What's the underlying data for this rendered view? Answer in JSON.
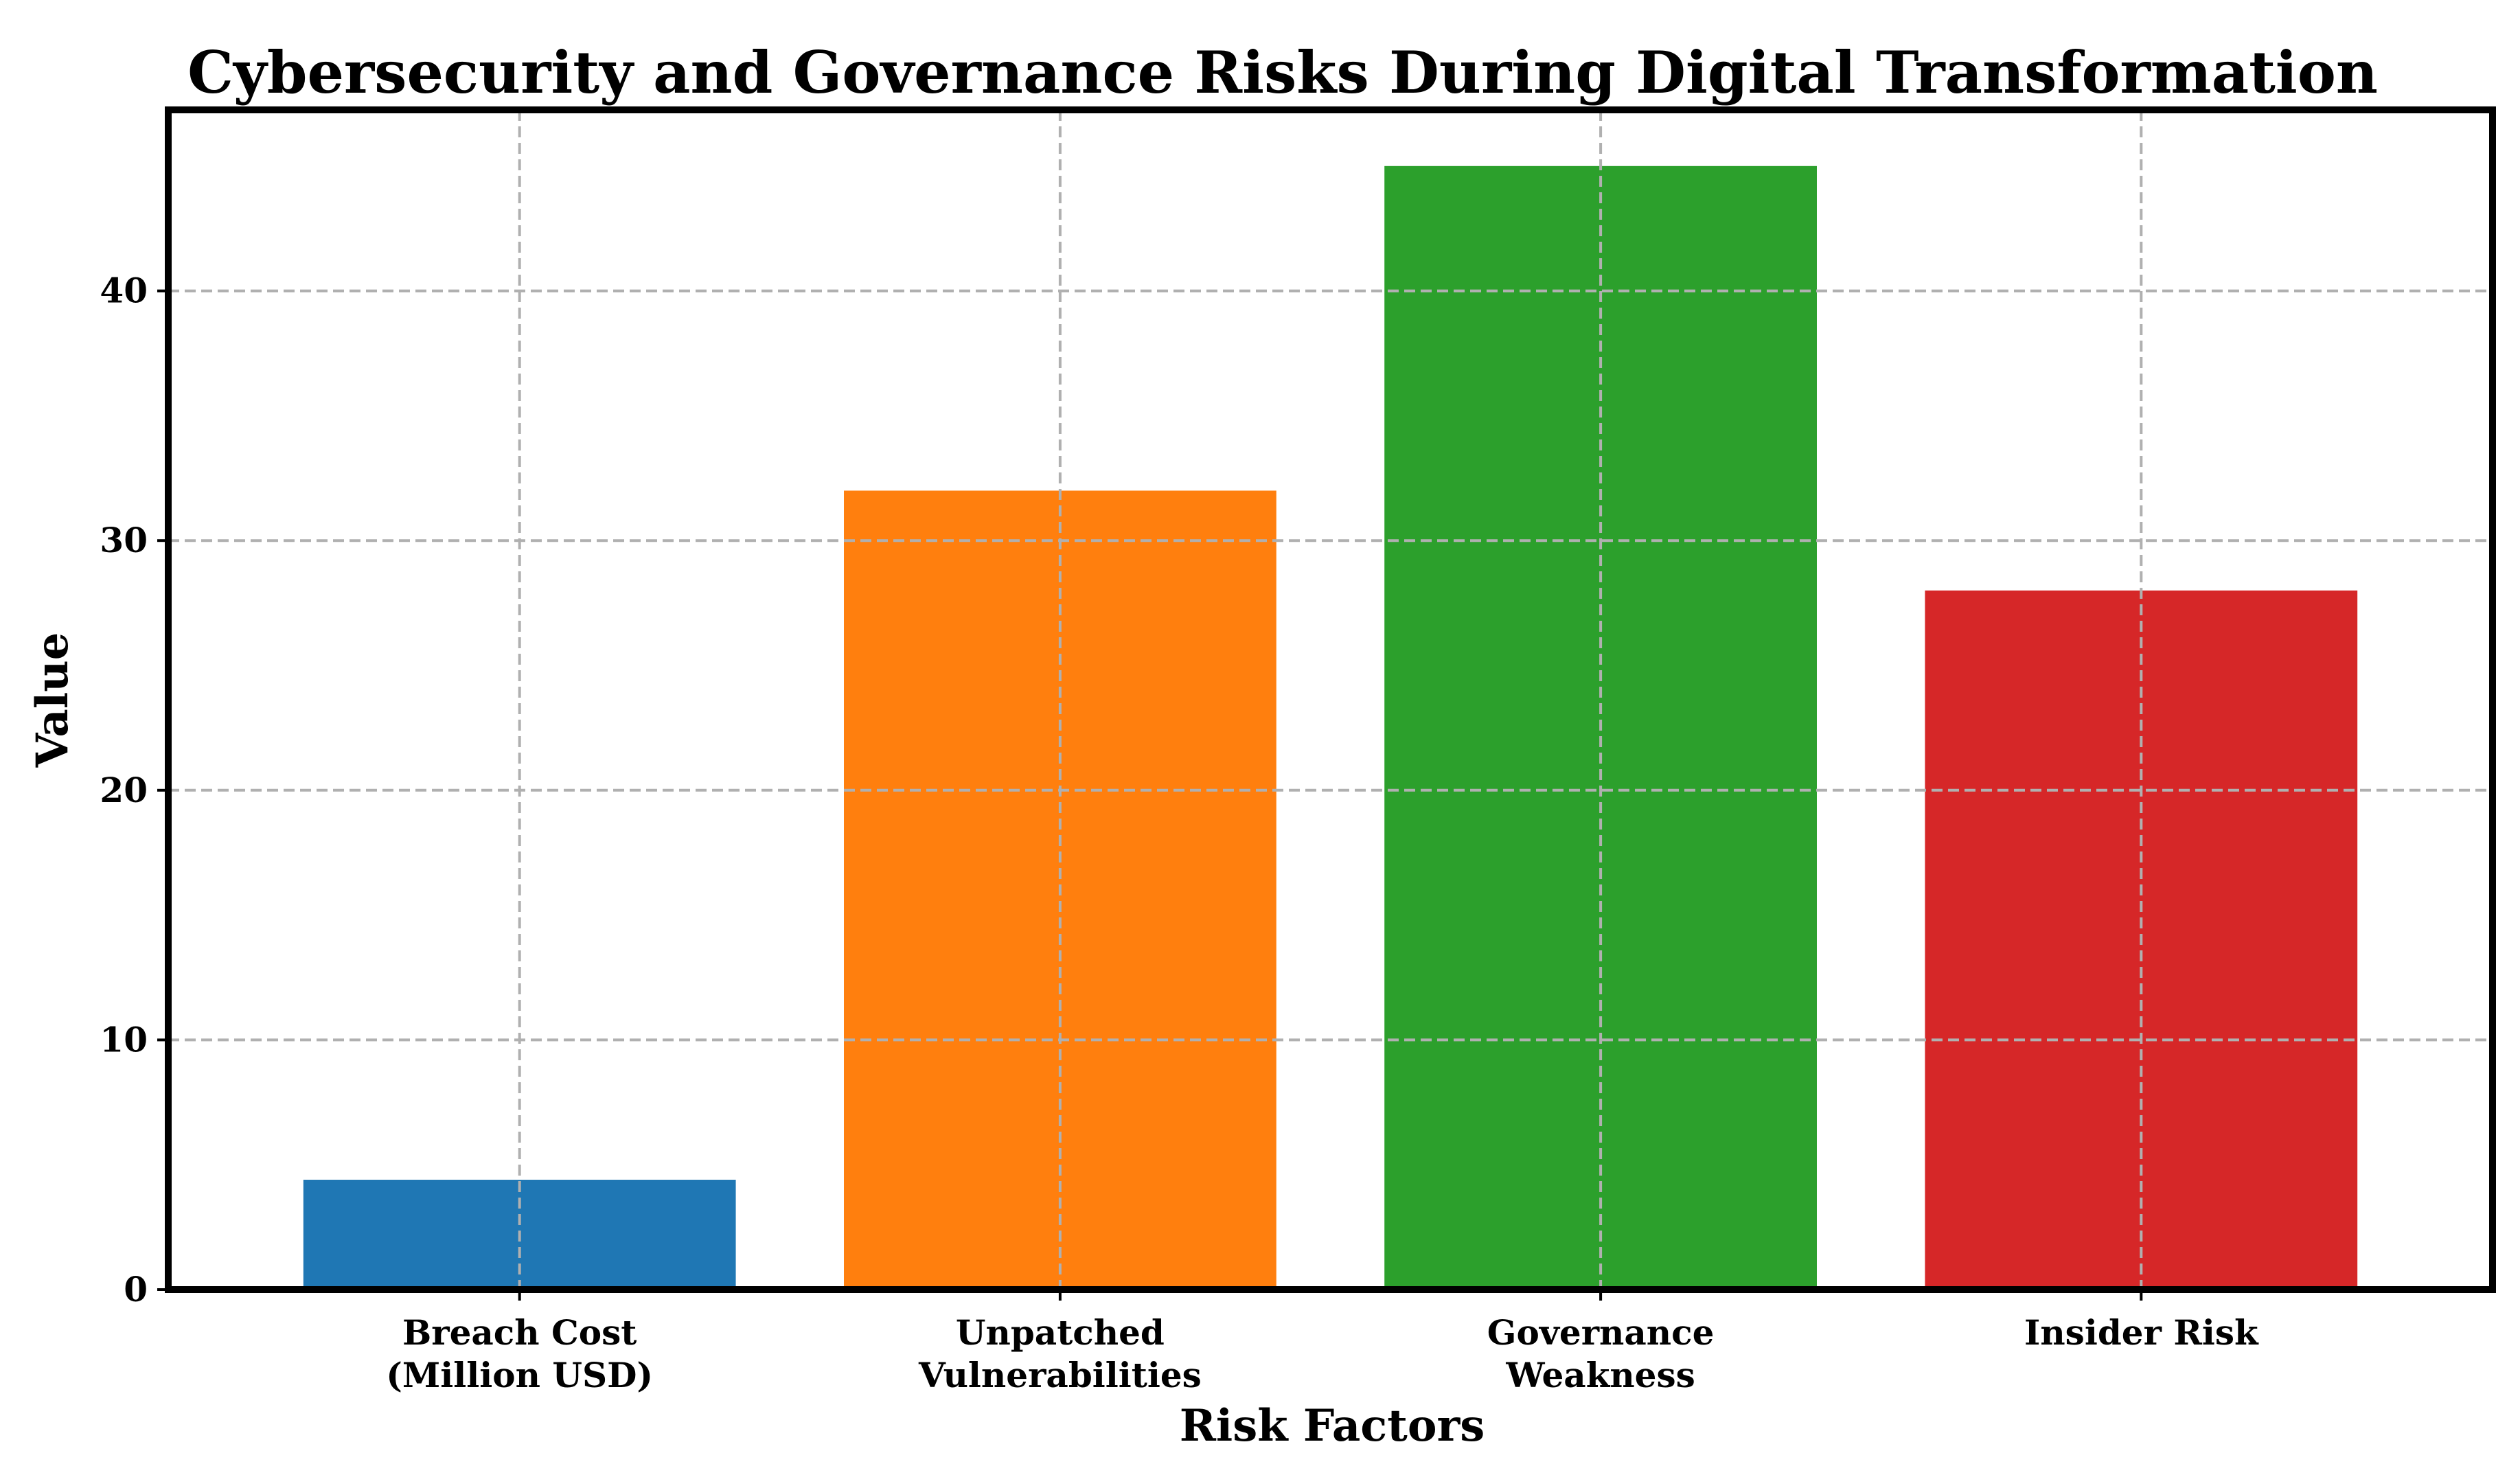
{
  "chart_data": {
    "type": "bar",
    "title": "Cybersecurity and Governance Risks During Digital Transformation",
    "xlabel": "Risk Factors",
    "ylabel": "Value",
    "categories": [
      [
        "Breach Cost",
        "(Million USD)"
      ],
      [
        "Unpatched",
        "Vulnerabilities"
      ],
      [
        "Governance",
        "Weakness"
      ],
      [
        "Insider Risk"
      ]
    ],
    "values": [
      4.4,
      32,
      45,
      28
    ],
    "colors": [
      "#1f77b4",
      "#ff7f0e",
      "#2ca02c",
      "#d62728"
    ],
    "ylim": [
      0,
      47.25
    ],
    "yticks": [
      0,
      10,
      20,
      30,
      40
    ],
    "grid": true
  }
}
